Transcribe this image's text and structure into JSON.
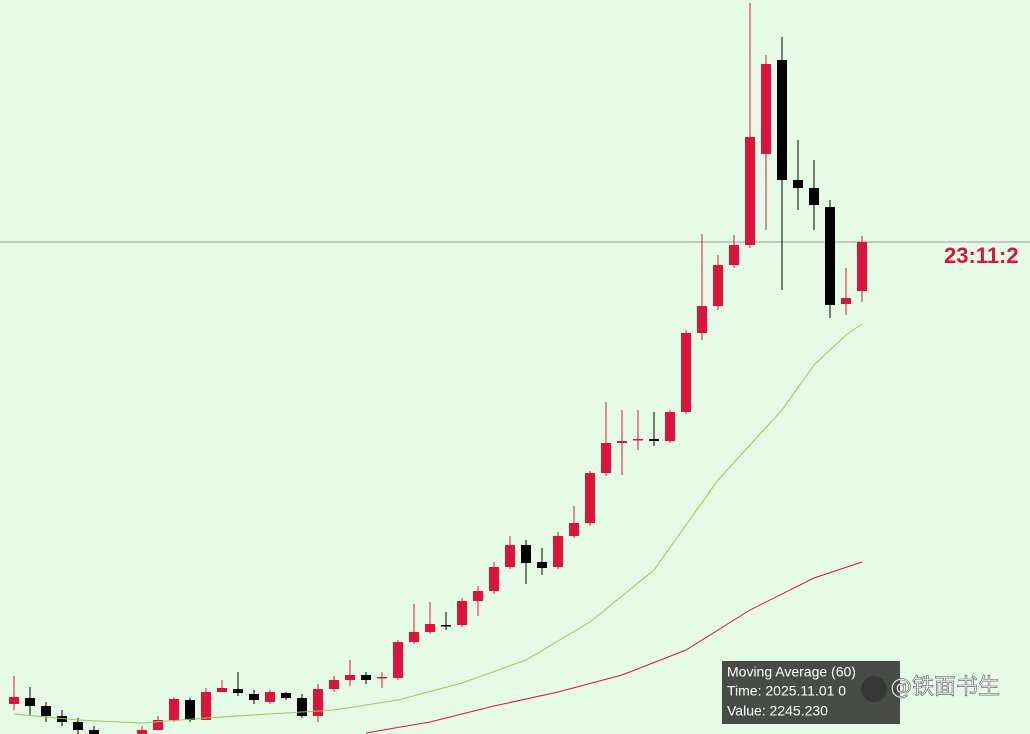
{
  "chart_data": {
    "type": "candlestick",
    "up_color": "#dc143c",
    "down_color": "#000000",
    "ylim": [
      2200,
      4402
    ],
    "open": [
      2290,
      2308,
      2284,
      2254,
      2236,
      2212,
      null,
      null,
      2200,
      2212,
      2242,
      2302,
      2242,
      2326,
      2335,
      2320,
      2296,
      2323,
      2308,
      2254,
      2335,
      2362,
      2377,
      2368,
      2368,
      2476,
      2506,
      2527,
      2527,
      2599,
      2629,
      2701,
      2767,
      2716,
      2701,
      2794,
      2833,
      2983,
      3073,
      3082,
      3085,
      3079,
      3166,
      3403,
      3484,
      3607,
      3667,
      3940,
      4222,
      3862,
      3838,
      3781,
      3490,
      3529
    ],
    "high": [
      2374,
      2341,
      2296,
      2272,
      2248,
      2224,
      null,
      null,
      2224,
      2254,
      2311,
      2308,
      2338,
      2362,
      2386,
      2332,
      2332,
      2326,
      2320,
      2350,
      2374,
      2422,
      2386,
      2386,
      2482,
      2590,
      2596,
      2566,
      2608,
      2644,
      2716,
      2794,
      2782,
      2758,
      2806,
      2884,
      2989,
      3196,
      3172,
      3172,
      3166,
      3172,
      3412,
      3700,
      3637,
      3697,
      4393,
      4237,
      4291,
      3982,
      3922,
      3802,
      3598,
      3694
    ],
    "low": [
      2272,
      2257,
      2236,
      2224,
      2200,
      2200,
      null,
      null,
      2200,
      2212,
      2236,
      2236,
      2242,
      2326,
      2314,
      2290,
      2290,
      2302,
      2248,
      2236,
      2326,
      2344,
      2350,
      2338,
      2362,
      2470,
      2500,
      2512,
      2521,
      2554,
      2620,
      2695,
      2650,
      2677,
      2695,
      2788,
      2824,
      2974,
      2977,
      3052,
      3064,
      3073,
      3160,
      3382,
      3472,
      3598,
      3658,
      3712,
      3532,
      3772,
      3712,
      3448,
      3457,
      3496
    ],
    "close": [
      2311,
      2284,
      2254,
      2236,
      2212,
      2200,
      null,
      null,
      2212,
      2242,
      2305,
      2242,
      2326,
      2338,
      2323,
      2302,
      2326,
      2308,
      2254,
      2335,
      2362,
      2377,
      2362,
      2371,
      2476,
      2506,
      2530,
      2524,
      2599,
      2629,
      2701,
      2767,
      2713,
      2698,
      2794,
      2833,
      2983,
      3073,
      3079,
      3085,
      3079,
      3166,
      3403,
      3484,
      3607,
      3667,
      3991,
      4210,
      3862,
      3838,
      3787,
      3487,
      3508,
      3676
    ],
    "moving_averages": [
      {
        "color": "#8fd14f",
        "x": [
          0,
          4,
          8,
          12,
          16,
          20,
          24,
          28,
          32,
          36,
          40,
          44,
          48,
          50,
          52,
          53
        ],
        "values": [
          2260,
          2242,
          2233,
          2248,
          2260,
          2272,
          2302,
          2353,
          2422,
          2536,
          2692,
          2962,
          3172,
          3307,
          3397,
          3430
        ]
      },
      {
        "color": "#dc143c",
        "x": [
          22,
          26,
          30,
          34,
          38,
          42,
          46,
          50,
          53
        ],
        "values": [
          2203,
          2236,
          2284,
          2326,
          2377,
          2452,
          2572,
          2668,
          2716
        ]
      }
    ],
    "price_line": {
      "value": 3676,
      "label": "23:11:2"
    },
    "tooltip": {
      "title": "Moving Average (60)",
      "time": "Time: 2025.11.01 0",
      "value": "Value: 2245.230"
    },
    "watermark": "@铁面书生"
  }
}
